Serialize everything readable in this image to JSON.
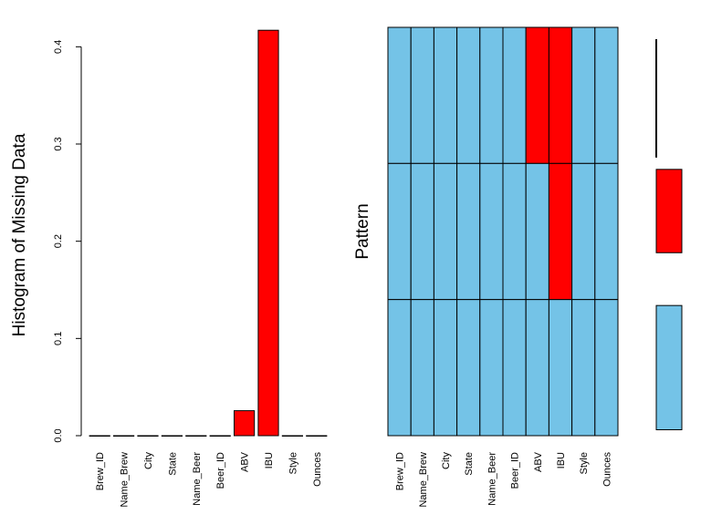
{
  "colors": {
    "present": "#74c3e7",
    "missing": "#ff0000",
    "outline": "#000000",
    "background": "#ffffff"
  },
  "chart_data": [
    {
      "type": "bar",
      "title": "",
      "xlabel": "",
      "ylabel": "Histogram of Missing Data",
      "categories": [
        "Brew_ID",
        "Name_Brew",
        "City",
        "State",
        "Name_Beer",
        "Beer_ID",
        "ABV",
        "IBU",
        "Style",
        "Ounces"
      ],
      "values": [
        0,
        0,
        0,
        0,
        0,
        0,
        0.0257,
        0.417,
        0,
        0
      ],
      "ylim": [
        0,
        0.42
      ],
      "yticks": [
        0.0,
        0.1,
        0.2,
        0.3,
        0.4
      ],
      "ytick_labels": [
        "0.0",
        "0.1",
        "0.2",
        "0.3",
        "0.4"
      ],
      "bar_color_rule": "red where value > 0",
      "grid": false
    },
    {
      "type": "heatmap",
      "title": "",
      "xlabel": "",
      "ylabel": "Pattern",
      "columns": [
        "Brew_ID",
        "Name_Brew",
        "City",
        "State",
        "Name_Beer",
        "Beer_ID",
        "ABV",
        "IBU",
        "Style",
        "Ounces"
      ],
      "patterns": [
        {
          "missing": [
            0,
            0,
            0,
            0,
            0,
            0,
            1,
            1,
            0,
            0
          ],
          "proportion": 0.0257
        },
        {
          "missing": [
            0,
            0,
            0,
            0,
            0,
            0,
            0,
            1,
            0,
            0
          ],
          "proportion": 0.391
        },
        {
          "missing": [
            0,
            0,
            0,
            0,
            0,
            0,
            0,
            0,
            0,
            0
          ],
          "proportion": 0.583
        }
      ],
      "grid": false
    }
  ]
}
